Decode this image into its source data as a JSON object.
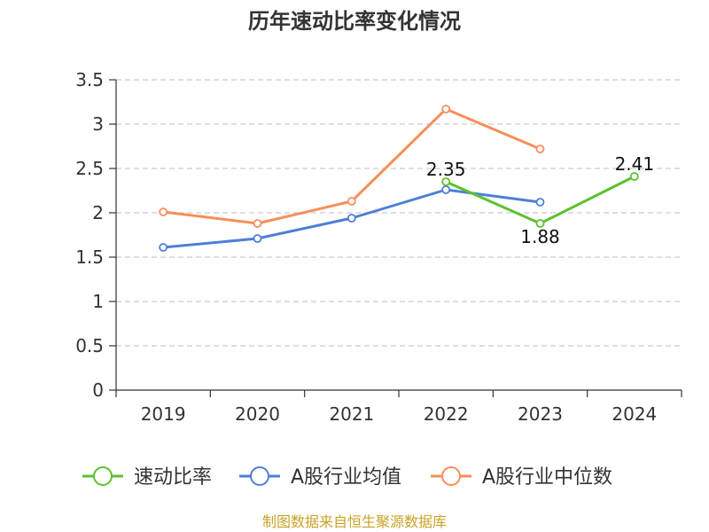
{
  "chart_data": {
    "type": "line",
    "title": "历年速动比率变化情况",
    "xlabel": "",
    "ylabel": "",
    "categories": [
      "2019",
      "2020",
      "2021",
      "2022",
      "2023",
      "2024"
    ],
    "y_ticks": [
      "0",
      "0.5",
      "1",
      "1.5",
      "2",
      "2.5",
      "3",
      "3.5"
    ],
    "ylim": [
      0,
      3.5
    ],
    "grid": true,
    "legend_position": "bottom",
    "series": [
      {
        "name": "速动比率",
        "color": "#5cc12e",
        "values": [
          null,
          null,
          null,
          2.35,
          1.88,
          2.41
        ],
        "labels": [
          null,
          null,
          null,
          "2.35",
          "1.88",
          "2.41"
        ]
      },
      {
        "name": "A股行业均值",
        "color": "#4e7fd6",
        "values": [
          1.61,
          1.71,
          1.94,
          2.26,
          2.12,
          null
        ]
      },
      {
        "name": "A股行业中位数",
        "color": "#f88e5a",
        "values": [
          2.01,
          1.88,
          2.13,
          3.17,
          2.72,
          null
        ]
      }
    ]
  },
  "source": "制图数据来自恒生聚源数据库"
}
